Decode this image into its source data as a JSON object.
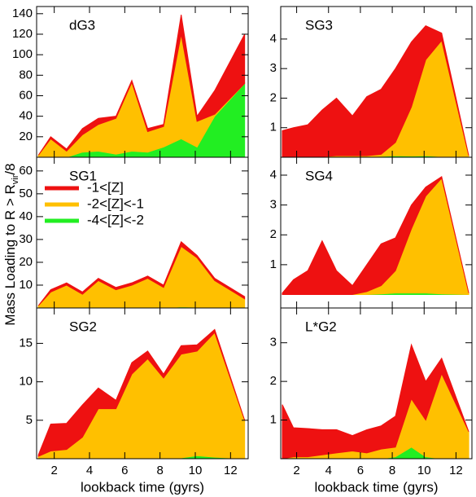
{
  "chart_data": [
    {
      "type": "area",
      "title": "dG3",
      "ylabel": [
        "Mass Loading to R > R",
        "vir",
        "/8"
      ],
      "x": [
        1.1,
        1.8,
        2.7,
        3.6,
        4.5,
        5.5,
        6.4,
        7.3,
        8.2,
        9.2,
        10.1,
        11.1,
        12.8
      ],
      "xlim": [
        1,
        13
      ],
      "xticks": [
        2,
        4,
        6,
        8,
        10,
        12
      ],
      "ylim": [
        0,
        147
      ],
      "yticks": [
        20,
        40,
        60,
        80,
        100,
        120,
        140
      ],
      "series": [
        {
          "name": "-4<[Z]<-2",
          "color": "#22ee22",
          "values": [
            0,
            0,
            0,
            5,
            6,
            3,
            6,
            5,
            10,
            18,
            10,
            40,
            72
          ]
        },
        {
          "name": "-2<[Z]<-1",
          "color": "#ffc000",
          "values": [
            2,
            18,
            6,
            17,
            26,
            35,
            67,
            20,
            20,
            102,
            25,
            2,
            0
          ]
        },
        {
          "name": "-1<[Z]",
          "color": "#ee1111",
          "values": [
            0,
            2,
            2,
            6,
            6,
            2,
            2,
            3,
            2,
            19,
            5,
            23,
            48
          ]
        }
      ]
    },
    {
      "type": "area",
      "title": "SG3",
      "x": [
        1.1,
        1.8,
        2.7,
        3.6,
        4.5,
        5.5,
        6.4,
        7.3,
        8.2,
        9.2,
        10.1,
        11.1,
        12.8
      ],
      "xlim": [
        1,
        13
      ],
      "xticks": [
        2,
        4,
        6,
        8,
        10,
        12
      ],
      "ylim": [
        0,
        5.1
      ],
      "yticks": [
        1,
        2,
        3,
        4
      ],
      "series": [
        {
          "name": "-4<[Z]<-2",
          "color": "#22ee22",
          "values": [
            0,
            0,
            0,
            0.01,
            0.02,
            0.02,
            0.02,
            0.03,
            0.05,
            0.04,
            0.05,
            0.02,
            0
          ]
        },
        {
          "name": "-2<[Z]<-1",
          "color": "#ffc000",
          "values": [
            0,
            0,
            0,
            0.01,
            0.03,
            0.03,
            0.03,
            0.07,
            0.45,
            1.66,
            3.25,
            3.93,
            0.05
          ]
        },
        {
          "name": "-1<[Z]",
          "color": "#ee1111",
          "values": [
            0.9,
            1.0,
            1.1,
            1.58,
            1.95,
            1.35,
            2.0,
            2.2,
            2.5,
            2.2,
            1.15,
            0.25,
            0
          ]
        }
      ]
    },
    {
      "type": "area",
      "title": "SG1",
      "legend": "upper left",
      "x": [
        1.1,
        1.8,
        2.7,
        3.6,
        4.5,
        5.5,
        6.4,
        7.3,
        8.2,
        9.2,
        10.1,
        11.1,
        12.8
      ],
      "xlim": [
        1,
        13
      ],
      "xticks": [
        2,
        4,
        6,
        8,
        10,
        12
      ],
      "ylim": [
        0,
        66
      ],
      "yticks": [
        10,
        20,
        30,
        40,
        50,
        60
      ],
      "series": [
        {
          "name": "-4<[Z]<-2",
          "color": "#22ee22",
          "values": [
            0,
            0,
            0,
            0,
            0,
            0,
            0,
            0,
            0,
            0.5,
            0.3,
            0.2,
            0
          ]
        },
        {
          "name": "-2<[Z]<-1",
          "color": "#ffc000",
          "values": [
            1,
            7,
            10,
            6,
            12,
            8,
            10,
            13,
            9,
            26.5,
            21.7,
            11.8,
            4
          ]
        },
        {
          "name": "-1<[Z]",
          "color": "#ee1111",
          "values": [
            0,
            1,
            1,
            1,
            1,
            1,
            1,
            1,
            1,
            2,
            1,
            1,
            1
          ]
        }
      ]
    },
    {
      "type": "area",
      "title": "SG4",
      "x": [
        1.1,
        1.8,
        2.7,
        3.6,
        4.5,
        5.5,
        6.4,
        7.3,
        8.2,
        9.2,
        10.1,
        11.1,
        12.8
      ],
      "xlim": [
        1,
        13
      ],
      "xticks": [
        2,
        4,
        6,
        8,
        10,
        12
      ],
      "ylim": [
        -0.45,
        4.6
      ],
      "yticks": [
        1,
        2,
        3,
        4
      ],
      "series": [
        {
          "name": "-4<[Z]<-2",
          "color": "#22ee22",
          "values": [
            0,
            0,
            0,
            0,
            0,
            0,
            0,
            0.02,
            0.05,
            0.05,
            0.05,
            0.02,
            0
          ]
        },
        {
          "name": "-2<[Z]<-1",
          "color": "#ffc000",
          "values": [
            0,
            0,
            0,
            0,
            0,
            0,
            0.1,
            0.28,
            0.75,
            2.15,
            3.25,
            3.88,
            0.05
          ]
        },
        {
          "name": "-1<[Z]",
          "color": "#ee1111",
          "values": [
            0.05,
            0.5,
            0.8,
            1.8,
            0.8,
            0.3,
            0.9,
            1.4,
            1.1,
            0.8,
            0.3,
            0.05,
            0
          ]
        }
      ]
    },
    {
      "type": "area",
      "title": "SG2",
      "xlabel": "lookback time (gyrs)",
      "x": [
        1.1,
        1.8,
        2.7,
        3.6,
        4.5,
        5.5,
        6.4,
        7.3,
        8.2,
        9.2,
        10.1,
        11.1,
        12.8
      ],
      "xlim": [
        1,
        13
      ],
      "xticks": [
        2,
        4,
        6,
        8,
        10,
        12
      ],
      "ylim": [
        0,
        19.6
      ],
      "yticks": [
        5,
        10,
        15
      ],
      "series": [
        {
          "name": "-4<[Z]<-2",
          "color": "#22ee22",
          "values": [
            0,
            0,
            0,
            0,
            0,
            0,
            0,
            0,
            0,
            0.1,
            0.4,
            0.2,
            0
          ]
        },
        {
          "name": "-2<[Z]<-1",
          "color": "#ffc000",
          "values": [
            0.3,
            1,
            1.2,
            2.8,
            6.5,
            6.5,
            11,
            13,
            10.5,
            13.5,
            13.6,
            16.2,
            5
          ]
        },
        {
          "name": "-1<[Z]",
          "color": "#ee1111",
          "values": [
            0.2,
            3.5,
            3.4,
            4.2,
            2.7,
            1.1,
            1.5,
            1,
            0.5,
            1.1,
            0.8,
            0.4,
            0
          ]
        }
      ]
    },
    {
      "type": "area",
      "title": "L*G2",
      "xlabel": "lookback time (gyrs)",
      "x": [
        1.1,
        1.8,
        2.7,
        3.6,
        4.5,
        5.5,
        6.4,
        7.3,
        8.2,
        9.2,
        10.1,
        11.1,
        12.8
      ],
      "xlim": [
        1,
        13
      ],
      "xticks": [
        2,
        4,
        6,
        8,
        10,
        12
      ],
      "ylim": [
        0,
        3.9
      ],
      "yticks": [
        1,
        2,
        3
      ],
      "series": [
        {
          "name": "-4<[Z]<-2",
          "color": "#22ee22",
          "values": [
            0,
            0,
            0,
            0,
            0,
            0,
            0,
            0,
            0.05,
            0.3,
            0.05,
            0,
            0
          ]
        },
        {
          "name": "-2<[Z]<-1",
          "color": "#ffc000",
          "values": [
            0,
            0.05,
            0.05,
            0.1,
            0.15,
            0.2,
            0.15,
            0.25,
            0.25,
            1.25,
            0.95,
            2.2,
            0.7
          ]
        },
        {
          "name": "-1<[Z]",
          "color": "#ee1111",
          "values": [
            1.4,
            0.75,
            0.73,
            0.65,
            0.6,
            0.4,
            0.6,
            0.6,
            0.8,
            1.4,
            1.0,
            0.4,
            0
          ]
        }
      ]
    }
  ]
}
